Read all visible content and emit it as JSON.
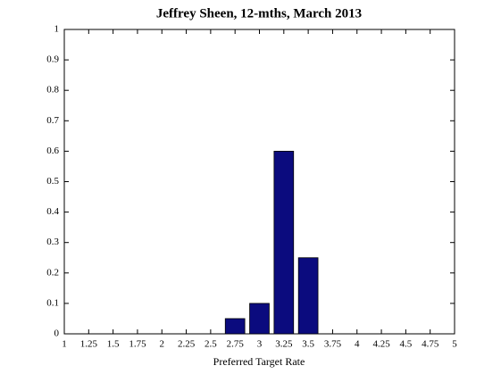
{
  "chart_data": {
    "type": "bar",
    "title": "Jeffrey Sheen, 12-mths, March 2013",
    "x_label": "Preferred Target Rate",
    "x": [
      2.75,
      3,
      3.25,
      3.5
    ],
    "values": [
      0.05,
      0.1,
      0.6,
      0.25
    ],
    "color": "#0b0b7e",
    "xlim": [
      1,
      5
    ],
    "xticks": [
      1,
      1.25,
      1.5,
      1.75,
      2,
      2.25,
      2.5,
      2.75,
      3,
      3.25,
      3.5,
      3.75,
      4,
      4.25,
      4.5,
      4.75,
      5
    ],
    "ylim": [
      0,
      1
    ],
    "yticks": [
      0,
      0.1,
      0.2,
      0.3,
      0.4,
      0.5,
      0.6,
      0.7,
      0.8,
      0.9,
      1
    ]
  }
}
